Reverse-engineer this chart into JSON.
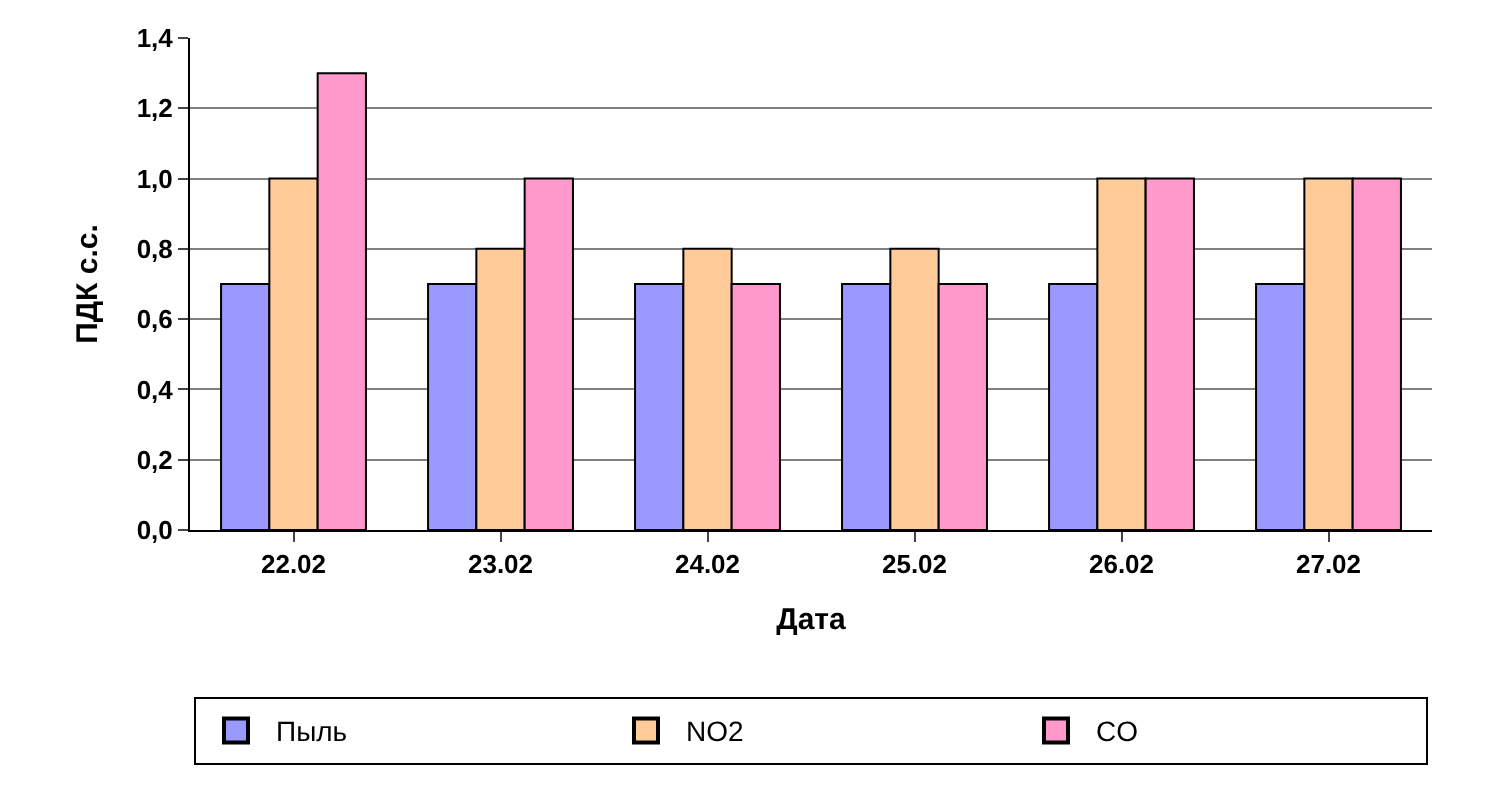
{
  "chart_data": {
    "type": "bar",
    "xlabel": "Дата",
    "ylabel": "ПДК с.с.",
    "categories": [
      "22.02",
      "23.02",
      "24.02",
      "25.02",
      "26.02",
      "27.02"
    ],
    "series": [
      {
        "name": "Пыль",
        "color": "#9999ff",
        "values": [
          0.7,
          0.7,
          0.7,
          0.7,
          0.7,
          0.7
        ]
      },
      {
        "name": "NO2",
        "color": "#ffcc99",
        "values": [
          1.0,
          0.8,
          0.8,
          0.8,
          1.0,
          1.0
        ]
      },
      {
        "name": "CO",
        "color": "#ff99cc",
        "values": [
          1.3,
          1.0,
          0.7,
          0.7,
          1.0,
          1.0
        ]
      }
    ],
    "ylim": [
      0,
      1.4
    ],
    "yticks": [
      {
        "value": 0,
        "label": "0,0"
      },
      {
        "value": 0.2,
        "label": "0,2"
      },
      {
        "value": 0.4,
        "label": "0,4"
      },
      {
        "value": 0.6,
        "label": "0,6"
      },
      {
        "value": 0.8,
        "label": "0,8"
      },
      {
        "value": 1.0,
        "label": "1,0"
      },
      {
        "value": 1.2,
        "label": "1,2"
      },
      {
        "value": 1.4,
        "label": "1,4"
      }
    ],
    "grid": "y",
    "legend": "bottom"
  }
}
